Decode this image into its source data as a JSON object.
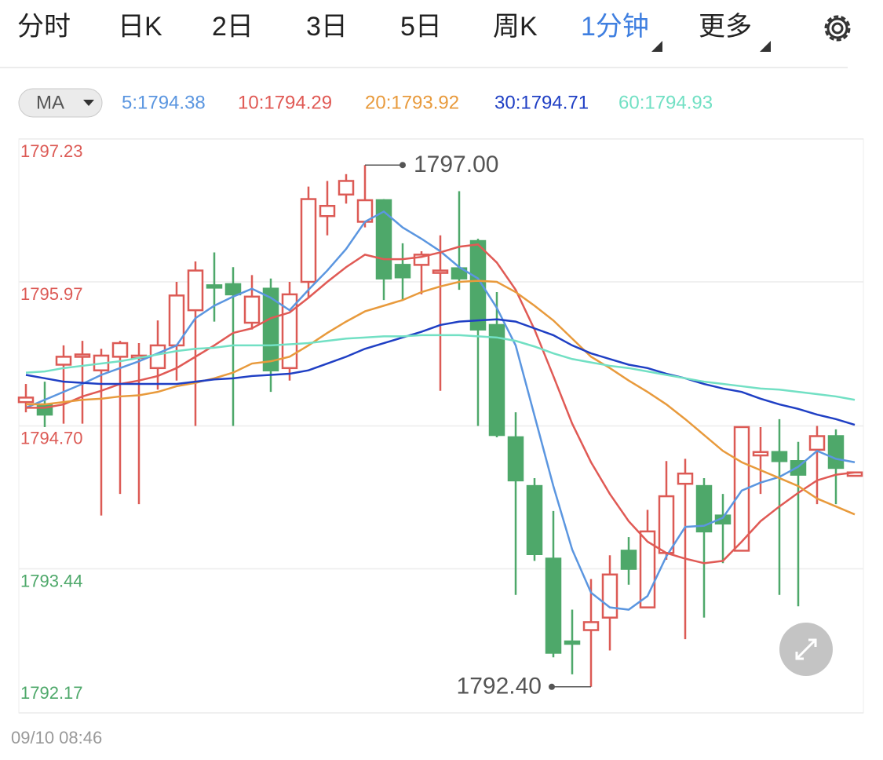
{
  "tabs": [
    "分时",
    "日K",
    "2日",
    "3日",
    "5日",
    "周K",
    "1分钟",
    "更多"
  ],
  "active_tab": 6,
  "indicator": "MA",
  "chart_data": {
    "type": "candlestick",
    "categories": [
      "09/10 08:46",
      null,
      null,
      null,
      null,
      null,
      null,
      null,
      null,
      null,
      null,
      null,
      null,
      null,
      null,
      null,
      null,
      null,
      null,
      null,
      null,
      null,
      null,
      null,
      null,
      null,
      null,
      null,
      null,
      null,
      null,
      null,
      null,
      null,
      null,
      null,
      null,
      null,
      null,
      null,
      null,
      null,
      null,
      null,
      null
    ],
    "open": [
      1794.91,
      1794.89,
      1795.24,
      1795.31,
      1795.19,
      1795.31,
      1795.31,
      1795.21,
      1795.41,
      1795.72,
      1795.94,
      1795.95,
      1795.61,
      1795.91,
      1795.21,
      1795.97,
      1796.55,
      1796.74,
      1796.5,
      1796.69,
      1796.12,
      1796.12,
      1796.05,
      1796.09,
      1796.33,
      1795.59,
      1794.6,
      1794.17,
      1793.53,
      1792.8,
      1792.9,
      1793.01,
      1793.6,
      1793.1,
      1793.58,
      1794.19,
      1794.17,
      1793.91,
      1793.6,
      1794.44,
      1794.47,
      1794.39,
      1794.49,
      1794.61,
      1794.26
    ],
    "high": [
      1795.07,
      1795.09,
      1795.41,
      1795.45,
      1795.38,
      1795.45,
      1795.43,
      1795.63,
      1795.97,
      1796.15,
      1796.23,
      1796.1,
      1796.03,
      1796.0,
      1795.97,
      1796.81,
      1796.86,
      1796.92,
      1797.0,
      1796.7,
      1796.31,
      1796.24,
      1796.38,
      1796.77,
      1796.35,
      1795.88,
      1794.82,
      1794.24,
      1793.95,
      1793.08,
      1793.35,
      1793.56,
      1793.72,
      1793.96,
      1794.39,
      1794.41,
      1794.24,
      1794.1,
      1794.69,
      1794.69,
      1794.76,
      1794.56,
      1794.7,
      1794.67,
      1794.29
    ],
    "low": [
      1794.82,
      1794.69,
      1794.72,
      1794.72,
      1793.91,
      1794.1,
      1794.01,
      1795.02,
      1795.1,
      1794.7,
      1795.62,
      1794.7,
      1795.55,
      1795.0,
      1795.1,
      1795.83,
      1796.38,
      1796.66,
      1796.45,
      1795.81,
      1795.81,
      1795.86,
      1795.01,
      1795.9,
      1794.7,
      1794.6,
      1793.21,
      1793.51,
      1792.66,
      1792.51,
      1792.4,
      1792.72,
      1793.3,
      1793.1,
      1793.52,
      1792.82,
      1793.01,
      1793.49,
      1793.6,
      1794.1,
      1793.21,
      1793.11,
      1794.01,
      1794.01,
      1794.26
    ],
    "close": [
      1794.95,
      1794.8,
      1795.31,
      1795.33,
      1795.32,
      1795.43,
      1795.32,
      1795.41,
      1795.85,
      1796.07,
      1795.92,
      1795.86,
      1795.84,
      1795.19,
      1795.86,
      1796.7,
      1796.64,
      1796.86,
      1796.69,
      1796.0,
      1796.01,
      1796.21,
      1796.07,
      1796.0,
      1795.55,
      1794.62,
      1794.22,
      1793.57,
      1792.7,
      1792.79,
      1792.97,
      1793.39,
      1793.44,
      1793.77,
      1794.08,
      1794.28,
      1793.77,
      1793.84,
      1794.69,
      1794.47,
      1794.39,
      1794.27,
      1794.61,
      1794.33,
      1794.29
    ],
    "up_color": "#dc5a55",
    "down_color": "#4ea86a",
    "series": [
      {
        "name": "5:1794.38",
        "color": "#5b96e0",
        "values": [
          1794.86,
          1794.93,
          1795.0,
          1795.07,
          1795.15,
          1795.21,
          1795.27,
          1795.34,
          1795.41,
          1795.65,
          1795.76,
          1795.84,
          1795.91,
          1795.83,
          1795.72,
          1795.9,
          1796.07,
          1796.26,
          1796.5,
          1796.59,
          1796.45,
          1796.35,
          1796.24,
          1796.1,
          1796.0,
          1795.74,
          1795.41,
          1794.79,
          1794.17,
          1793.61,
          1793.23,
          1793.1,
          1793.08,
          1793.2,
          1793.55,
          1793.81,
          1793.82,
          1793.89,
          1794.13,
          1794.2,
          1794.25,
          1794.34,
          1794.48,
          1794.41,
          1794.38
        ]
      },
      {
        "name": "10:1794.29",
        "color": "#e05a55",
        "values": [
          1794.86,
          1794.86,
          1794.89,
          1794.96,
          1795.01,
          1795.07,
          1795.1,
          1795.14,
          1795.21,
          1795.31,
          1795.41,
          1795.52,
          1795.56,
          1795.65,
          1795.7,
          1795.83,
          1795.97,
          1796.1,
          1796.21,
          1796.17,
          1796.17,
          1796.19,
          1796.23,
          1796.28,
          1796.3,
          1796.14,
          1795.9,
          1795.55,
          1795.14,
          1794.72,
          1794.38,
          1794.1,
          1793.86,
          1793.68,
          1793.58,
          1793.53,
          1793.49,
          1793.51,
          1793.68,
          1793.86,
          1793.99,
          1794.11,
          1794.22,
          1794.27,
          1794.29
        ]
      },
      {
        "name": "20:1793.92",
        "color": "#e89a3c",
        "values": [
          1794.89,
          1794.89,
          1794.91,
          1794.93,
          1794.94,
          1794.96,
          1794.97,
          1795.0,
          1795.05,
          1795.08,
          1795.12,
          1795.17,
          1795.25,
          1795.27,
          1795.31,
          1795.41,
          1795.52,
          1795.62,
          1795.71,
          1795.76,
          1795.81,
          1795.88,
          1795.93,
          1795.97,
          1795.98,
          1795.97,
          1795.88,
          1795.76,
          1795.63,
          1795.47,
          1795.31,
          1795.21,
          1795.1,
          1795.0,
          1794.89,
          1794.76,
          1794.62,
          1794.48,
          1794.38,
          1794.31,
          1794.24,
          1794.17,
          1794.06,
          1793.99,
          1793.92
        ]
      },
      {
        "name": "30:1794.71",
        "color": "#1f3fc4",
        "values": [
          1795.15,
          1795.12,
          1795.09,
          1795.08,
          1795.07,
          1795.07,
          1795.07,
          1795.07,
          1795.07,
          1795.09,
          1795.11,
          1795.12,
          1795.14,
          1795.15,
          1795.16,
          1795.19,
          1795.25,
          1795.31,
          1795.38,
          1795.43,
          1795.48,
          1795.53,
          1795.59,
          1795.62,
          1795.63,
          1795.64,
          1795.62,
          1795.56,
          1795.5,
          1795.41,
          1795.34,
          1795.29,
          1795.24,
          1795.21,
          1795.16,
          1795.12,
          1795.07,
          1795.03,
          1795.0,
          1794.94,
          1794.89,
          1794.85,
          1794.8,
          1794.76,
          1794.71
        ]
      },
      {
        "name": "60:1794.93",
        "color": "#72e0c4",
        "values": [
          1795.17,
          1795.18,
          1795.21,
          1795.23,
          1795.25,
          1795.27,
          1795.3,
          1795.33,
          1795.36,
          1795.38,
          1795.39,
          1795.41,
          1795.41,
          1795.41,
          1795.42,
          1795.43,
          1795.45,
          1795.47,
          1795.48,
          1795.49,
          1795.49,
          1795.5,
          1795.5,
          1795.5,
          1795.49,
          1795.48,
          1795.45,
          1795.4,
          1795.34,
          1795.29,
          1795.26,
          1795.23,
          1795.21,
          1795.18,
          1795.15,
          1795.12,
          1795.09,
          1795.07,
          1795.05,
          1795.03,
          1795.02,
          1795.0,
          1794.98,
          1794.96,
          1794.93
        ]
      }
    ],
    "ylim": [
      1792.17,
      1797.23
    ],
    "yticks": [
      1797.23,
      1795.97,
      {
        "value": 1794.7,
        "label": "1794.70"
      },
      1793.44,
      1792.17
    ],
    "ytick_colors": [
      "#dc5a55",
      "#dc5a55",
      "#dc5a55",
      "#4ea86a",
      "#4ea86a"
    ],
    "grid": true,
    "annotations": [
      {
        "value": 1797,
        "label": "1797.00",
        "index": 18
      },
      {
        "value": 1792.4,
        "label": "1792.40",
        "index": 30
      }
    ]
  }
}
